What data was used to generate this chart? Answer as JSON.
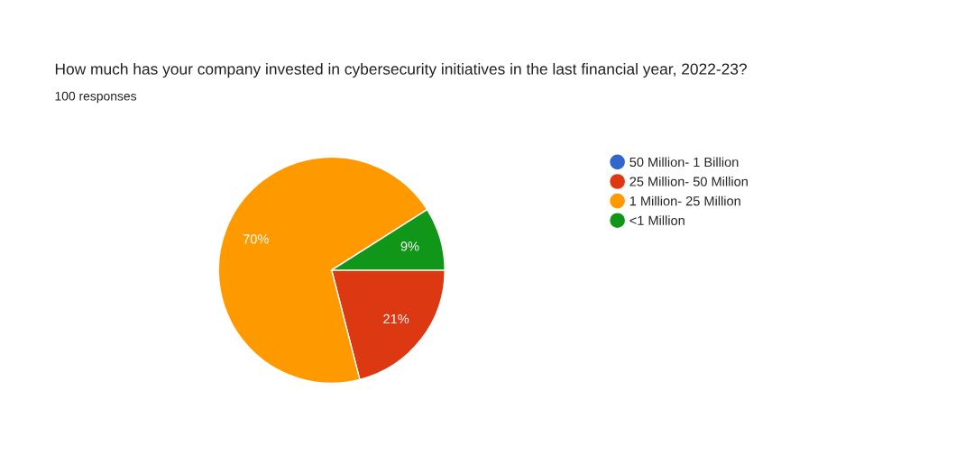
{
  "chart_data": {
    "type": "pie",
    "title": "How much has your company invested in cybersecurity initiatives in the last financial year, 2022-23?",
    "subtitle": "100 responses",
    "categories": [
      "50 Million- 1 Billion",
      "25 Million- 50 Million",
      "1 Million- 25 Million",
      "<1 Million"
    ],
    "values": [
      0,
      21,
      70,
      9
    ],
    "colors": [
      "#3366cc",
      "#dc3912",
      "#ff9900",
      "#109618"
    ],
    "value_labels": [
      null,
      "21%",
      "70%",
      "9%"
    ],
    "legend": "right"
  }
}
